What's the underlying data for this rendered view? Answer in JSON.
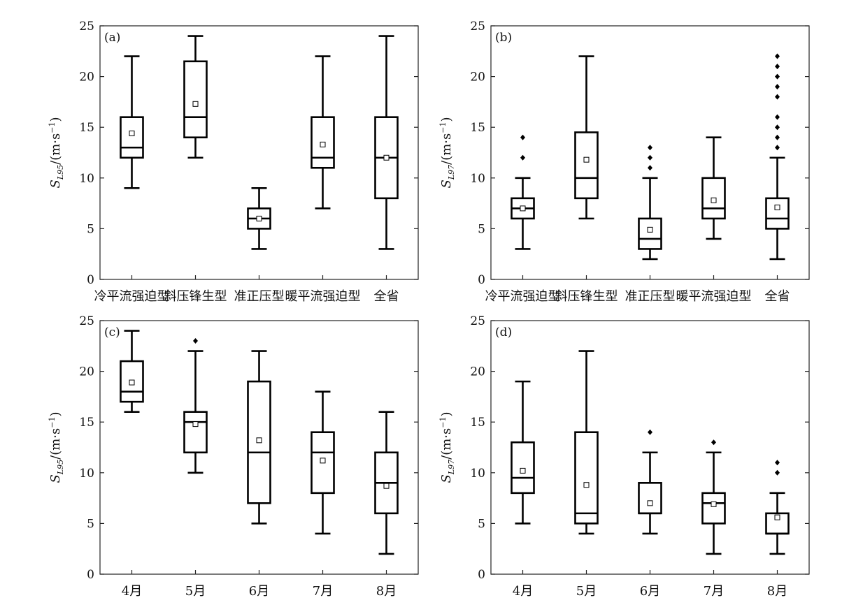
{
  "chart_data": [
    {
      "type": "box",
      "panel_label": "(a)",
      "ylabel": {
        "symbol": "S",
        "subscript": "L95",
        "unit": "/(m·s",
        "exponent": "−1",
        "close": ")"
      },
      "ylim": [
        0,
        25
      ],
      "yticks": [
        0,
        5,
        10,
        15,
        20,
        25
      ],
      "categories": [
        "冷平流强迫型",
        "斜压锋生型",
        "准正压型",
        "暖平流强迫型",
        "全省"
      ],
      "boxes": [
        {
          "min": 9,
          "q1": 12,
          "median": 13,
          "q3": 16,
          "max": 22,
          "mean": 14.4,
          "outliers": []
        },
        {
          "min": 12,
          "q1": 14,
          "median": 16,
          "q3": 21.5,
          "max": 24,
          "mean": 17.3,
          "outliers": []
        },
        {
          "min": 3,
          "q1": 5,
          "median": 6,
          "q3": 7,
          "max": 9,
          "mean": 6,
          "outliers": []
        },
        {
          "min": 7,
          "q1": 11,
          "median": 12,
          "q3": 16,
          "max": 22,
          "mean": 13.3,
          "outliers": []
        },
        {
          "min": 3,
          "q1": 8,
          "median": 12,
          "q3": 16,
          "max": 24,
          "mean": 12,
          "outliers": []
        }
      ]
    },
    {
      "type": "box",
      "panel_label": "(b)",
      "ylabel": {
        "symbol": "S",
        "subscript": "L97",
        "unit": "/(m·s",
        "exponent": "−1",
        "close": ")"
      },
      "ylim": [
        0,
        25
      ],
      "yticks": [
        0,
        5,
        10,
        15,
        20,
        25
      ],
      "categories": [
        "冷平流强迫型",
        "斜压锋生型",
        "准正压型",
        "暖平流强迫型",
        "全省"
      ],
      "boxes": [
        {
          "min": 3,
          "q1": 6,
          "median": 7,
          "q3": 8,
          "max": 10,
          "mean": 7,
          "outliers": [
            12,
            14
          ]
        },
        {
          "min": 6,
          "q1": 8,
          "median": 10,
          "q3": 14.5,
          "max": 22,
          "mean": 11.8,
          "outliers": []
        },
        {
          "min": 2,
          "q1": 3,
          "median": 4,
          "q3": 6,
          "max": 10,
          "mean": 4.9,
          "outliers": [
            11,
            12,
            13
          ]
        },
        {
          "min": 4,
          "q1": 6,
          "median": 7,
          "q3": 10,
          "max": 14,
          "mean": 7.8,
          "outliers": []
        },
        {
          "min": 2,
          "q1": 5,
          "median": 6,
          "q3": 8,
          "max": 12,
          "mean": 7.1,
          "outliers": [
            13,
            14,
            15,
            16,
            18,
            19,
            20,
            21,
            22
          ]
        }
      ]
    },
    {
      "type": "box",
      "panel_label": "(c)",
      "ylabel": {
        "symbol": "S",
        "subscript": "L95",
        "unit": "/(m·s",
        "exponent": "−1",
        "close": ")"
      },
      "ylim": [
        0,
        25
      ],
      "yticks": [
        0,
        5,
        10,
        15,
        20,
        25
      ],
      "categories": [
        "4月",
        "5月",
        "6月",
        "7月",
        "8月"
      ],
      "boxes": [
        {
          "min": 16,
          "q1": 17,
          "median": 18,
          "q3": 21,
          "max": 24,
          "mean": 18.9,
          "outliers": []
        },
        {
          "min": 10,
          "q1": 12,
          "median": 15,
          "q3": 16,
          "max": 22,
          "mean": 14.8,
          "outliers": [
            23
          ]
        },
        {
          "min": 5,
          "q1": 7,
          "median": 12,
          "q3": 19,
          "max": 22,
          "mean": 13.2,
          "outliers": []
        },
        {
          "min": 4,
          "q1": 8,
          "median": 12,
          "q3": 14,
          "max": 18,
          "mean": 11.2,
          "outliers": []
        },
        {
          "min": 2,
          "q1": 6,
          "median": 9,
          "q3": 12,
          "max": 16,
          "mean": 8.7,
          "outliers": []
        }
      ]
    },
    {
      "type": "box",
      "panel_label": "(d)",
      "ylabel": {
        "symbol": "S",
        "subscript": "L97",
        "unit": "/(m·s",
        "exponent": "−1",
        "close": ")"
      },
      "ylim": [
        0,
        25
      ],
      "yticks": [
        0,
        5,
        10,
        15,
        20,
        25
      ],
      "categories": [
        "4月",
        "5月",
        "6月",
        "7月",
        "8月"
      ],
      "boxes": [
        {
          "min": 5,
          "q1": 8,
          "median": 9.5,
          "q3": 13,
          "max": 19,
          "mean": 10.2,
          "outliers": []
        },
        {
          "min": 4,
          "q1": 5,
          "median": 6,
          "q3": 14,
          "max": 22,
          "mean": 8.8,
          "outliers": []
        },
        {
          "min": 4,
          "q1": 6,
          "median": 6,
          "q3": 9,
          "max": 12,
          "mean": 7,
          "outliers": [
            14
          ]
        },
        {
          "min": 2,
          "q1": 5,
          "median": 7,
          "q3": 8,
          "max": 12,
          "mean": 6.9,
          "outliers": [
            13
          ]
        },
        {
          "min": 2,
          "q1": 4,
          "median": 4,
          "q3": 6,
          "max": 8,
          "mean": 5.6,
          "outliers": [
            10,
            11
          ]
        }
      ]
    }
  ]
}
